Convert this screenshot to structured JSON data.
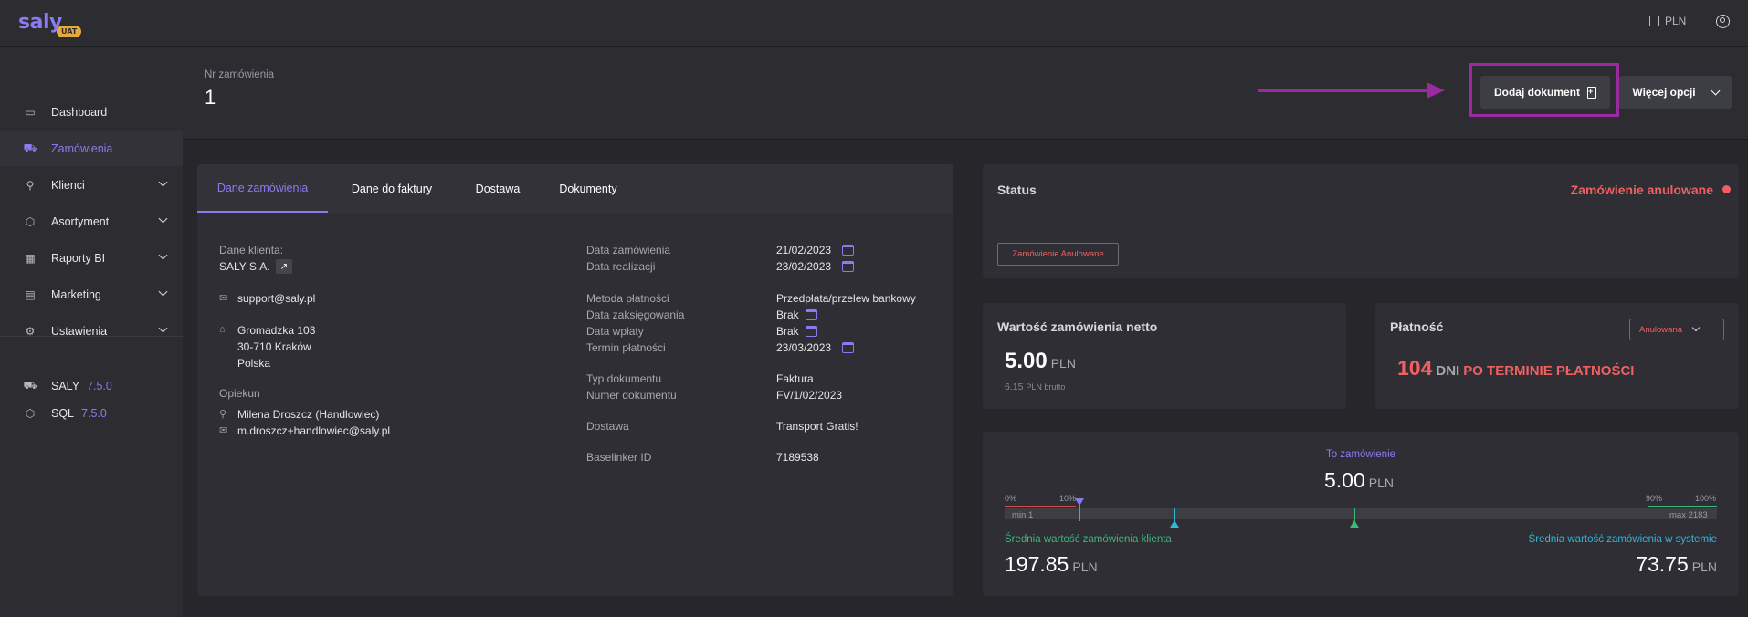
{
  "topbar": {
    "logo": "saly",
    "env_badge": "UAT",
    "currency": "PLN"
  },
  "sidebar": {
    "items": [
      {
        "label": "Dashboard",
        "icon": "monitor-icon"
      },
      {
        "label": "Zamówienia",
        "icon": "cart-icon",
        "active": true
      },
      {
        "label": "Klienci",
        "icon": "user-icon"
      },
      {
        "label": "Asortyment",
        "icon": "box-icon"
      },
      {
        "label": "Raporty BI",
        "icon": "report-icon"
      },
      {
        "label": "Marketing",
        "icon": "megaphone-icon"
      },
      {
        "label": "Ustawienia",
        "icon": "gear-icon"
      }
    ],
    "versions": [
      {
        "name": "SALY",
        "version": "7.5.0"
      },
      {
        "name": "SQL",
        "version": "7.5.0"
      }
    ]
  },
  "header": {
    "order_label": "Nr zamówienia",
    "order_number": "1",
    "add_document": "Dodaj dokument",
    "more_options": "Więcej opcji"
  },
  "tabs": [
    "Dane zamówienia",
    "Dane do faktury",
    "Dostawa",
    "Dokumenty"
  ],
  "client": {
    "label": "Dane klienta:",
    "name": "SALY S.A.",
    "email": "support@saly.pl",
    "address_line1": "Gromadzka 103",
    "address_line2": "30-710 Kraków",
    "country": "Polska",
    "keeper_label": "Opiekun",
    "keeper_name": "Milena Droszcz (Handlowiec)",
    "keeper_email": "m.droszcz+handlowiec@saly.pl"
  },
  "order_details": {
    "order_date_label": "Data zamówienia",
    "order_date": "21/02/2023",
    "realization_label": "Data realizacji",
    "realization_date": "23/02/2023",
    "payment_method_label": "Metoda płatności",
    "payment_method": "Przedpłata/przelew bankowy",
    "booking_label": "Data zaksięgowania",
    "booking_value": "Brak",
    "payment_date_label": "Data wpłaty",
    "payment_date_value": "Brak",
    "due_label": "Termin płatności",
    "due_date": "23/03/2023",
    "doc_type_label": "Typ dokumentu",
    "doc_type": "Faktura",
    "doc_number_label": "Numer dokumentu",
    "doc_number": "FV/1/02/2023",
    "delivery_label": "Dostawa",
    "delivery": "Transport Gratis!",
    "baselinker_label": "Baselinker ID",
    "baselinker_id": "7189538"
  },
  "status": {
    "title": "Status",
    "text": "Zamówienie anulowane",
    "badge": "Zamówienie Anulowane",
    "color": "#f06060"
  },
  "netto": {
    "title": "Wartość zamówienia netto",
    "value": "5.00",
    "currency": "PLN",
    "brutto_value": "6.15",
    "brutto_label": "PLN brutto"
  },
  "payment": {
    "title": "Płatność",
    "select_value": "Anulowana",
    "days": "104",
    "days_label": "DNI",
    "overdue_text": "PO TERMINIE PŁATNOŚCI"
  },
  "range": {
    "to_order_label": "To zamówienie",
    "to_order_value": "5.00",
    "currency": "PLN",
    "pct_0": "0%",
    "pct_10": "10%",
    "pct_90": "90%",
    "pct_100": "100%",
    "min_label": "min 1",
    "max_label": "max 2183",
    "client_avg_label": "Średnia wartość zamówienia klienta",
    "client_avg_value": "197.85",
    "system_avg_label": "Średnia wartość zamówienia w systemie",
    "system_avg_value": "73.75",
    "accent": "#8b7bf0",
    "client_color": "#3bb97a",
    "system_color": "#33b6d6"
  }
}
